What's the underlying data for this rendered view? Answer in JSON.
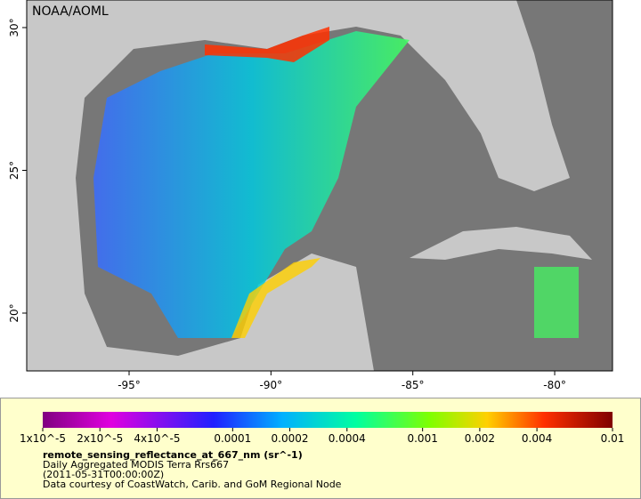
{
  "map": {
    "credit": "NOAA/AOML",
    "lon_ticks": [
      {
        "value": -95,
        "label": "-95°"
      },
      {
        "value": -90,
        "label": "-90°"
      },
      {
        "value": -85,
        "label": "-85°"
      },
      {
        "value": -80,
        "label": "-80°"
      }
    ],
    "lat_ticks": [
      {
        "value": 30,
        "label": "30°"
      },
      {
        "value": 25,
        "label": "25°"
      },
      {
        "value": 20,
        "label": "20°"
      }
    ]
  },
  "colorbar": {
    "ticks": [
      {
        "value": 1e-05,
        "label": "1x10^-5"
      },
      {
        "value": 2e-05,
        "label": "2x10^-5"
      },
      {
        "value": 4e-05,
        "label": "4x10^-5"
      },
      0.0001,
      0.0002,
      0.0004,
      0.001,
      0.002,
      0.004,
      0.01
    ]
  },
  "caption": {
    "title": "remote_sensing_reflectance_at_667_nm (sr^-1)",
    "lines": [
      "Daily Aggregated MODIS Terra Rrs667",
      "(2011-05-31T00:00:00Z)",
      "Data courtesy of CoastWatch, Carib. and GoM Regional Node"
    ]
  }
}
